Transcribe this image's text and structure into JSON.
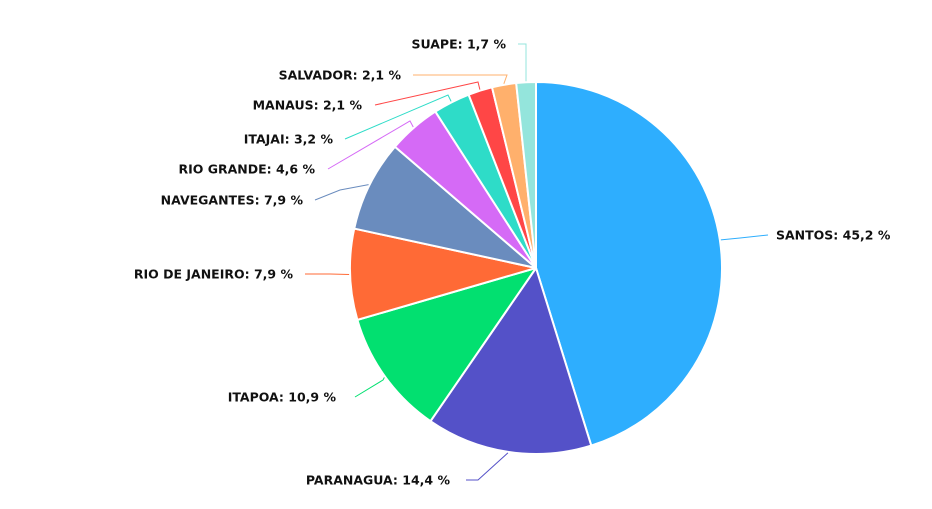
{
  "chart_data": {
    "type": "pie",
    "title": "",
    "start_angle": "12 o'clock",
    "direction": "clockwise",
    "slices": [
      {
        "label": "SANTOS",
        "value": 45.2,
        "text": "SANTOS: 45,2 %",
        "color": "#2EAEFE"
      },
      {
        "label": "PARANAGUA",
        "value": 14.4,
        "text": "PARANAGUA: 14,4 %",
        "color": "#5451C8"
      },
      {
        "label": "ITAPOA",
        "value": 10.9,
        "text": "ITAPOA: 10,9 %",
        "color": "#02E070"
      },
      {
        "label": "RIO DE JANEIRO",
        "value": 7.9,
        "text": "RIO DE JANEIRO: 7,9 %",
        "color": "#FF6A36"
      },
      {
        "label": "NAVEGANTES",
        "value": 7.9,
        "text": "NAVEGANTES: 7,9 %",
        "color": "#6A8CBE"
      },
      {
        "label": "RIO GRANDE",
        "value": 4.6,
        "text": "RIO GRANDE: 4,6 %",
        "color": "#D56AF6"
      },
      {
        "label": "ITAJAI",
        "value": 3.2,
        "text": "ITAJAI: 3,2 %",
        "color": "#2EDCC8"
      },
      {
        "label": "MANAUS",
        "value": 2.1,
        "text": "MANAUS: 2,1 %",
        "color": "#FF4646"
      },
      {
        "label": "SALVADOR",
        "value": 2.1,
        "text": "SALVADOR: 2,1 %",
        "color": "#FFB06C"
      },
      {
        "label": "SUAPE",
        "value": 1.7,
        "text": "SUAPE: 1,7 %",
        "color": "#94E5DC"
      }
    ]
  }
}
